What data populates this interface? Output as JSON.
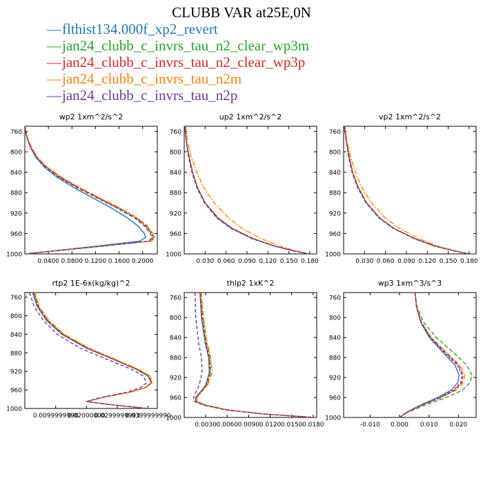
{
  "title": "CLUBB VAR at25E,0N",
  "legend": [
    {
      "label": "flthist134.000f_xp2_revert",
      "color": "#1f77b4"
    },
    {
      "label": "jan24_clubb_c_invrs_tau_n2_clear_wp3m",
      "color": "#2ca02c"
    },
    {
      "label": "jan24_clubb_c_invrs_tau_n2_clear_wp3p",
      "color": "#d62728"
    },
    {
      "label": "jan24_clubb_c_invrs_tau_n2m",
      "color": "#ff7f0e"
    },
    {
      "label": "jan24_clubb_c_invrs_tau_n2p",
      "color": "#6a3d9a"
    }
  ],
  "chart_data": [
    {
      "type": "line",
      "title": "wp2",
      "units": "1xm^2/s^2",
      "xlim": [
        0,
        0.225
      ],
      "ylim": [
        1000,
        750
      ],
      "xticks": [
        "0.0400",
        "0.0800",
        "0.1200",
        "0.1600",
        "0.2000"
      ],
      "xtick_values": [
        0.04,
        0.08,
        0.12,
        0.16,
        0.2
      ],
      "yticks": [
        "760",
        "800",
        "840",
        "880",
        "920",
        "960",
        "1000"
      ],
      "y": [
        750,
        770,
        790,
        810,
        830,
        850,
        870,
        890,
        910,
        930,
        945,
        960,
        968,
        975,
        985,
        1000
      ],
      "series": [
        {
          "name": "flthist134.000f_xp2_revert",
          "values": [
            0.0,
            0.003,
            0.009,
            0.018,
            0.033,
            0.055,
            0.083,
            0.115,
            0.147,
            0.175,
            0.192,
            0.203,
            0.205,
            0.195,
            0.12,
            0.0
          ]
        },
        {
          "name": "jan24_clubb_c_invrs_tau_n2_clear_wp3m",
          "values": [
            0.0,
            0.003,
            0.01,
            0.02,
            0.036,
            0.06,
            0.09,
            0.124,
            0.158,
            0.189,
            0.205,
            0.215,
            0.218,
            0.212,
            0.13,
            0.0
          ]
        },
        {
          "name": "jan24_clubb_c_invrs_tau_n2_clear_wp3p",
          "values": [
            0.0,
            0.003,
            0.01,
            0.02,
            0.037,
            0.061,
            0.091,
            0.125,
            0.16,
            0.19,
            0.206,
            0.216,
            0.219,
            0.213,
            0.13,
            0.0
          ]
        },
        {
          "name": "jan24_clubb_c_invrs_tau_n2m",
          "values": [
            0.0,
            0.004,
            0.011,
            0.021,
            0.038,
            0.063,
            0.093,
            0.127,
            0.162,
            0.192,
            0.208,
            0.218,
            0.221,
            0.215,
            0.13,
            0.0
          ]
        },
        {
          "name": "jan24_clubb_c_invrs_tau_n2p",
          "values": [
            0.0,
            0.003,
            0.009,
            0.019,
            0.035,
            0.058,
            0.088,
            0.122,
            0.156,
            0.187,
            0.203,
            0.213,
            0.216,
            0.21,
            0.13,
            0.0
          ]
        }
      ]
    },
    {
      "type": "line",
      "title": "up2",
      "units": "1xm^2/s^2",
      "xlim": [
        0,
        0.19
      ],
      "ylim": [
        1000,
        750
      ],
      "xticks": [
        "0.030",
        "0.060",
        "0.090",
        "0.120",
        "0.150",
        "0.180"
      ],
      "xtick_values": [
        0.03,
        0.06,
        0.09,
        0.12,
        0.15,
        0.18
      ],
      "yticks": [
        "760",
        "800",
        "840",
        "880",
        "920",
        "960",
        "1000"
      ],
      "y": [
        750,
        780,
        810,
        840,
        870,
        900,
        930,
        950,
        970,
        985,
        995,
        1000
      ],
      "series": [
        {
          "name": "flthist134.000f_xp2_revert",
          "values": [
            0.001,
            0.003,
            0.007,
            0.012,
            0.019,
            0.03,
            0.048,
            0.068,
            0.098,
            0.13,
            0.16,
            0.18
          ]
        },
        {
          "name": "jan24_clubb_c_invrs_tau_n2_clear_wp3m",
          "values": [
            0.001,
            0.003,
            0.007,
            0.012,
            0.019,
            0.03,
            0.049,
            0.069,
            0.099,
            0.131,
            0.161,
            0.18
          ]
        },
        {
          "name": "jan24_clubb_c_invrs_tau_n2_clear_wp3p",
          "values": [
            0.001,
            0.003,
            0.007,
            0.012,
            0.019,
            0.03,
            0.049,
            0.069,
            0.099,
            0.131,
            0.161,
            0.18
          ]
        },
        {
          "name": "jan24_clubb_c_invrs_tau_n2m",
          "values": [
            0.002,
            0.005,
            0.01,
            0.018,
            0.028,
            0.043,
            0.064,
            0.083,
            0.11,
            0.138,
            0.163,
            0.18
          ]
        },
        {
          "name": "jan24_clubb_c_invrs_tau_n2p",
          "values": [
            0.001,
            0.003,
            0.006,
            0.011,
            0.018,
            0.029,
            0.047,
            0.067,
            0.097,
            0.13,
            0.16,
            0.18
          ]
        }
      ]
    },
    {
      "type": "line",
      "title": "vp2",
      "units": "1xm^2/s^2",
      "xlim": [
        0,
        0.19
      ],
      "ylim": [
        1000,
        750
      ],
      "xticks": [
        "0.030",
        "0.060",
        "0.090",
        "0.120",
        "0.150",
        "0.180"
      ],
      "xtick_values": [
        0.03,
        0.06,
        0.09,
        0.12,
        0.15,
        0.18
      ],
      "yticks": [
        "760",
        "800",
        "840",
        "880",
        "920",
        "960",
        "1000"
      ],
      "y": [
        750,
        780,
        810,
        840,
        870,
        900,
        930,
        950,
        970,
        985,
        995,
        1000
      ],
      "series": [
        {
          "name": "flthist134.000f_xp2_revert",
          "values": [
            0.001,
            0.004,
            0.008,
            0.013,
            0.021,
            0.033,
            0.052,
            0.072,
            0.102,
            0.132,
            0.162,
            0.18
          ]
        },
        {
          "name": "jan24_clubb_c_invrs_tau_n2_clear_wp3m",
          "values": [
            0.001,
            0.004,
            0.008,
            0.013,
            0.021,
            0.033,
            0.052,
            0.072,
            0.102,
            0.132,
            0.162,
            0.18
          ]
        },
        {
          "name": "jan24_clubb_c_invrs_tau_n2_clear_wp3p",
          "values": [
            0.001,
            0.004,
            0.008,
            0.013,
            0.021,
            0.033,
            0.052,
            0.072,
            0.102,
            0.132,
            0.162,
            0.18
          ]
        },
        {
          "name": "jan24_clubb_c_invrs_tau_n2m",
          "values": [
            0.002,
            0.005,
            0.01,
            0.017,
            0.026,
            0.04,
            0.06,
            0.08,
            0.108,
            0.136,
            0.164,
            0.18
          ]
        },
        {
          "name": "jan24_clubb_c_invrs_tau_n2p",
          "values": [
            0.001,
            0.004,
            0.007,
            0.012,
            0.02,
            0.032,
            0.051,
            0.071,
            0.101,
            0.131,
            0.161,
            0.18
          ]
        }
      ]
    },
    {
      "type": "line",
      "title": "rtp2",
      "units": "1E-6x(kg/kg)^2",
      "xlim": [
        0,
        0.043
      ],
      "ylim": [
        1000,
        750
      ],
      "xticks": [
        "0.0099999998",
        "0.02000000",
        "0.0299999993",
        "0.0399999990"
      ],
      "xtick_values": [
        0.01,
        0.02,
        0.03,
        0.04
      ],
      "yticks": [
        "760",
        "800",
        "840",
        "880",
        "920",
        "960",
        "1000"
      ],
      "y": [
        750,
        780,
        810,
        840,
        870,
        895,
        915,
        930,
        945,
        955,
        965,
        975,
        985,
        992,
        1000
      ],
      "series": [
        {
          "name": "flthist134.000f_xp2_revert",
          "values": [
            0.0025,
            0.004,
            0.007,
            0.012,
            0.02,
            0.029,
            0.036,
            0.04,
            0.041,
            0.039,
            0.034,
            0.026,
            0.02,
            0.028,
            0.04
          ]
        },
        {
          "name": "jan24_clubb_c_invrs_tau_n2_clear_wp3m",
          "values": [
            0.003,
            0.0045,
            0.0075,
            0.0125,
            0.0205,
            0.0295,
            0.0365,
            0.0405,
            0.0412,
            0.0392,
            0.0342,
            0.026,
            0.02,
            0.028,
            0.04
          ]
        },
        {
          "name": "jan24_clubb_c_invrs_tau_n2_clear_wp3p",
          "values": [
            0.0028,
            0.0043,
            0.0073,
            0.0123,
            0.0203,
            0.0293,
            0.0362,
            0.0402,
            0.041,
            0.039,
            0.034,
            0.026,
            0.02,
            0.028,
            0.04
          ]
        },
        {
          "name": "jan24_clubb_c_invrs_tau_n2m",
          "values": [
            0.0032,
            0.0047,
            0.0078,
            0.0128,
            0.021,
            0.0298,
            0.0368,
            0.0407,
            0.0413,
            0.0393,
            0.0342,
            0.026,
            0.02,
            0.028,
            0.04
          ]
        },
        {
          "name": "jan24_clubb_c_invrs_tau_n2p",
          "values": [
            0.0015,
            0.003,
            0.006,
            0.0105,
            0.018,
            0.027,
            0.0345,
            0.0385,
            0.0395,
            0.0375,
            0.033,
            0.0255,
            0.02,
            0.028,
            0.04
          ]
        }
      ]
    },
    {
      "type": "line",
      "title": "thlp2",
      "units": "1xK^2",
      "xlim": [
        0,
        0.0185
      ],
      "ylim": [
        1000,
        750
      ],
      "xticks": [
        "0.0030",
        "0.0060",
        "0.0090",
        "0.0120",
        "0.0150",
        "0.0180"
      ],
      "xtick_values": [
        0.003,
        0.006,
        0.009,
        0.012,
        0.015,
        0.018
      ],
      "yticks": [
        "760",
        "800",
        "840",
        "880",
        "920",
        "960",
        "1000"
      ],
      "y": [
        750,
        800,
        850,
        880,
        910,
        935,
        950,
        960,
        968,
        975,
        985,
        993,
        1000
      ],
      "series": [
        {
          "name": "flthist134.000f_xp2_revert",
          "values": [
            0.0022,
            0.0024,
            0.0029,
            0.0034,
            0.0035,
            0.003,
            0.0022,
            0.0016,
            0.0016,
            0.0028,
            0.006,
            0.011,
            0.0182
          ]
        },
        {
          "name": "jan24_clubb_c_invrs_tau_n2_clear_wp3m",
          "values": [
            0.0023,
            0.0026,
            0.0031,
            0.0036,
            0.0037,
            0.0032,
            0.0023,
            0.0017,
            0.0017,
            0.0029,
            0.006,
            0.011,
            0.0182
          ]
        },
        {
          "name": "jan24_clubb_c_invrs_tau_n2_clear_wp3p",
          "values": [
            0.0022,
            0.0025,
            0.003,
            0.0035,
            0.0036,
            0.0031,
            0.0023,
            0.0017,
            0.0017,
            0.0029,
            0.006,
            0.011,
            0.0182
          ]
        },
        {
          "name": "jan24_clubb_c_invrs_tau_n2m",
          "values": [
            0.0024,
            0.0027,
            0.0032,
            0.0037,
            0.0039,
            0.0033,
            0.0024,
            0.0018,
            0.0018,
            0.003,
            0.0062,
            0.0112,
            0.0182
          ]
        },
        {
          "name": "jan24_clubb_c_invrs_tau_n2p",
          "values": [
            0.0015,
            0.0016,
            0.002,
            0.0024,
            0.0025,
            0.0021,
            0.0016,
            0.0013,
            0.0014,
            0.0026,
            0.0058,
            0.0108,
            0.0182
          ]
        }
      ]
    },
    {
      "type": "line",
      "title": "wp3",
      "units": "1xm^3/s^3",
      "xlim": [
        -0.019,
        0.026
      ],
      "ylim": [
        1000,
        750
      ],
      "xticks": [
        "-0.010",
        "0.000",
        "0.010",
        "0.020"
      ],
      "xtick_values": [
        -0.01,
        0.0,
        0.01,
        0.02
      ],
      "yticks": [
        "760",
        "800",
        "840",
        "880",
        "920",
        "960",
        "1000"
      ],
      "y": [
        750,
        780,
        810,
        840,
        870,
        895,
        915,
        930,
        945,
        960,
        975,
        990,
        1000
      ],
      "series": [
        {
          "name": "flthist134.000f_xp2_revert",
          "values": [
            0.0052,
            0.0058,
            0.0072,
            0.0101,
            0.0148,
            0.0188,
            0.0202,
            0.0198,
            0.0176,
            0.013,
            0.0072,
            0.0022,
            0.0
          ]
        },
        {
          "name": "jan24_clubb_c_invrs_tau_n2_clear_wp3m",
          "values": [
            0.0052,
            0.006,
            0.0082,
            0.0125,
            0.0183,
            0.0228,
            0.0246,
            0.024,
            0.0214,
            0.016,
            0.0088,
            0.0027,
            0.0
          ]
        },
        {
          "name": "jan24_clubb_c_invrs_tau_n2_clear_wp3p",
          "values": [
            0.0052,
            0.0058,
            0.0073,
            0.0104,
            0.0153,
            0.0196,
            0.0212,
            0.0208,
            0.0184,
            0.0136,
            0.0075,
            0.0023,
            0.0
          ]
        },
        {
          "name": "jan24_clubb_c_invrs_tau_n2m",
          "values": [
            0.0052,
            0.0059,
            0.0075,
            0.0108,
            0.016,
            0.0205,
            0.0222,
            0.0218,
            0.0193,
            0.0143,
            0.0079,
            0.0024,
            0.0
          ]
        },
        {
          "name": "jan24_clubb_c_invrs_tau_n2p",
          "values": [
            0.0052,
            0.0058,
            0.0074,
            0.0106,
            0.0157,
            0.02,
            0.0216,
            0.0212,
            0.0188,
            0.014,
            0.0077,
            0.0023,
            0.0
          ]
        }
      ]
    }
  ]
}
